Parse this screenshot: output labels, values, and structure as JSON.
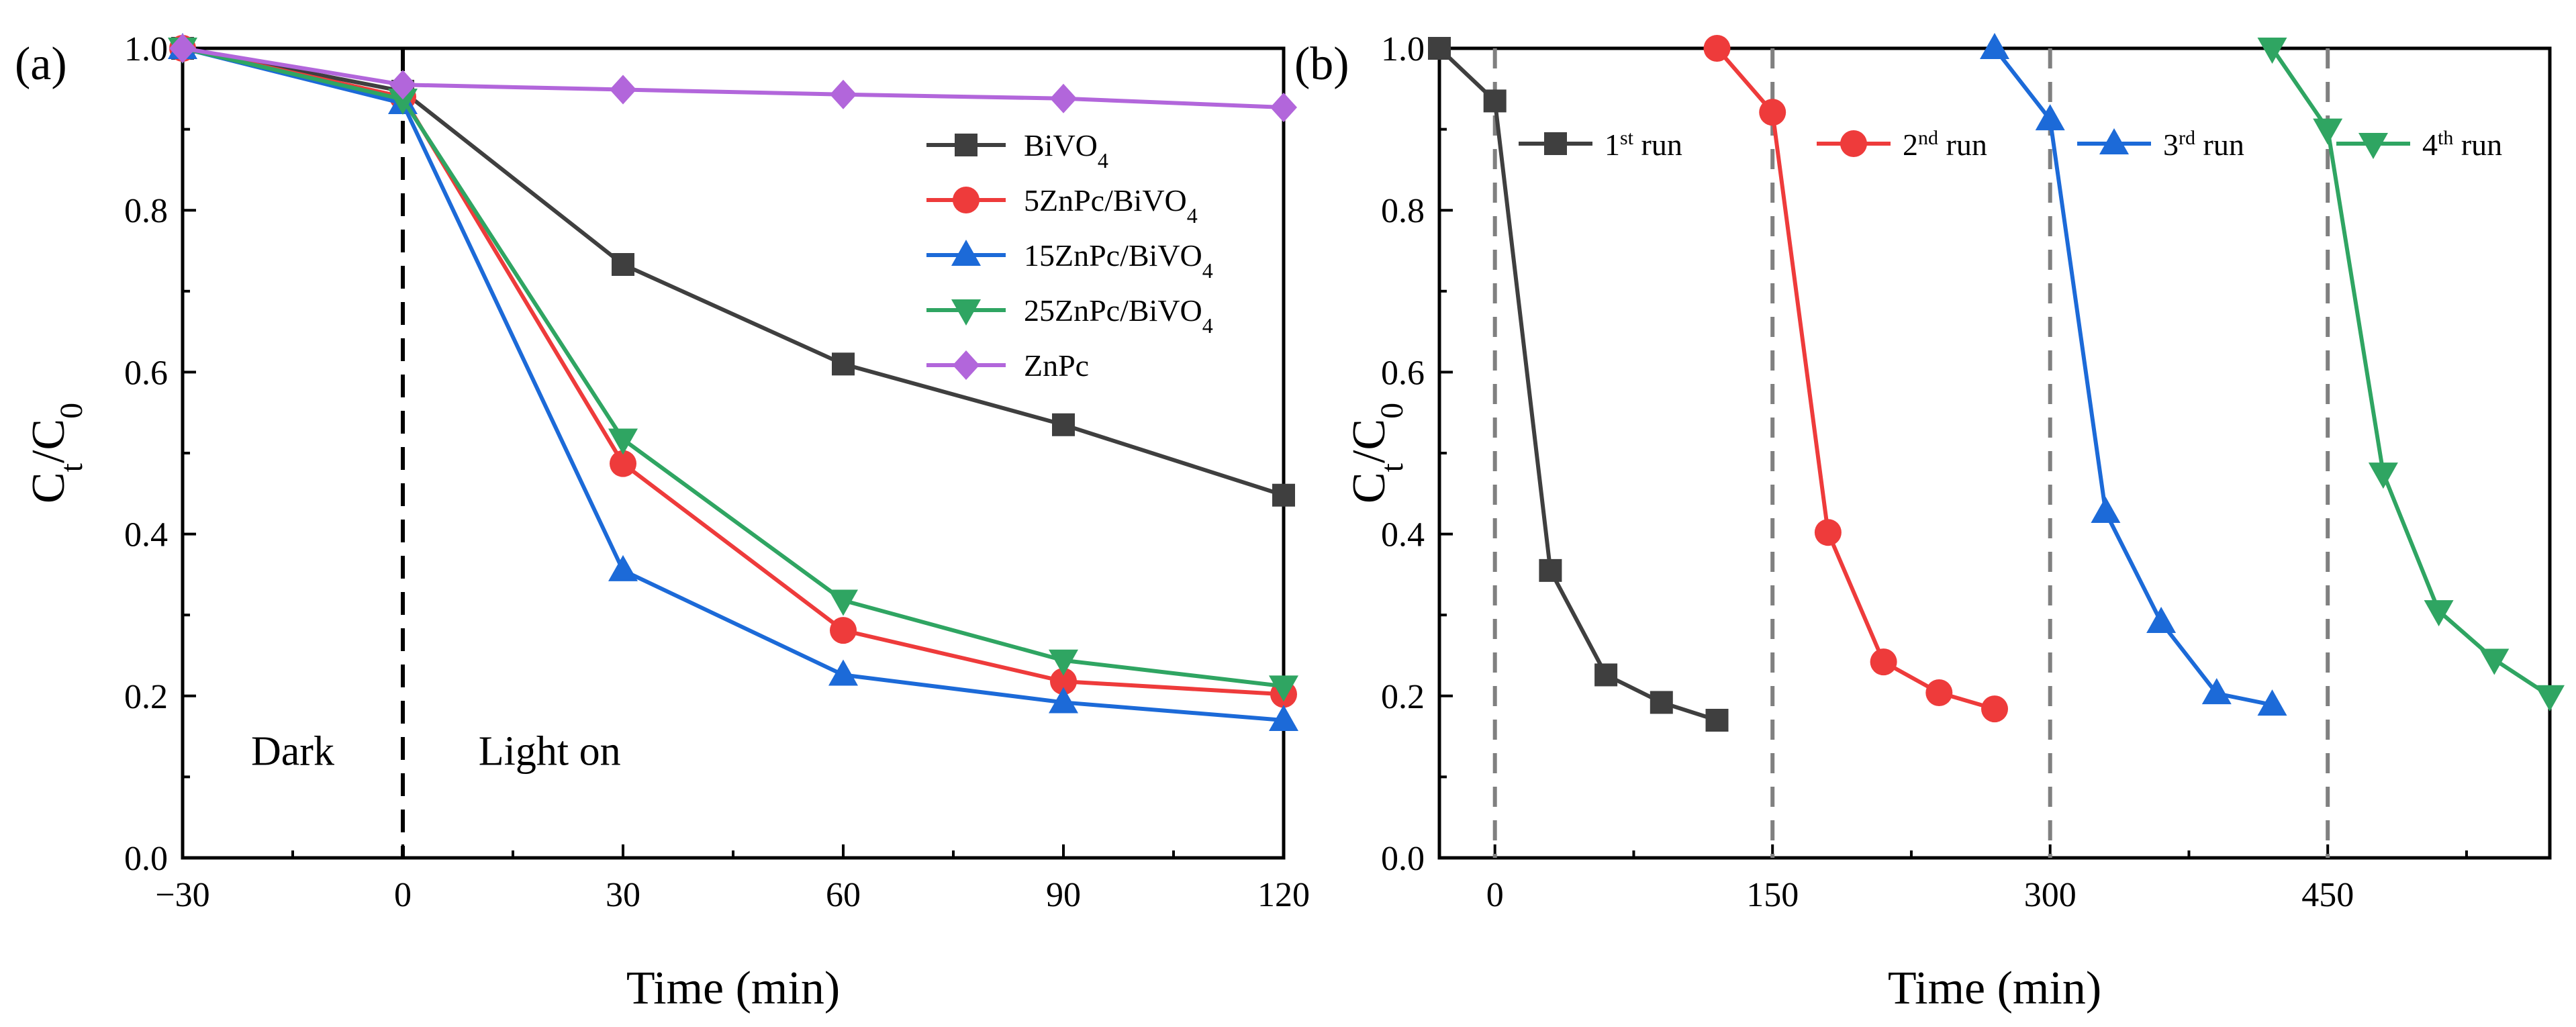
{
  "chart_data": [
    {
      "panel": "(a)",
      "type": "line",
      "xlabel": "Time (min)",
      "ylabel": "Ct/C0",
      "xlim": [
        -30,
        120
      ],
      "ylim": [
        0,
        1.0
      ],
      "xticks": [
        -30,
        0,
        30,
        60,
        90,
        120
      ],
      "xtick_labels": [
        "−30",
        "0",
        "30",
        "60",
        "90",
        "120"
      ],
      "yticks": [
        0.0,
        0.2,
        0.4,
        0.6,
        0.8,
        1.0
      ],
      "ytick_labels": [
        "0.0",
        "0.2",
        "0.4",
        "0.6",
        "0.8",
        "1.0"
      ],
      "x": [
        -30,
        0,
        30,
        60,
        90,
        120
      ],
      "legend_position": "top-right",
      "annotations": [
        {
          "text": "Dark",
          "x": -15,
          "y": 0.115
        },
        {
          "text": "Light on",
          "x": 20,
          "y": 0.115
        }
      ],
      "vline": {
        "x": 0,
        "style": "dashed"
      },
      "series": [
        {
          "name": "BiVO4",
          "base": "BiVO",
          "sub": "4",
          "color": "#3f3f3f",
          "marker": "square",
          "values": [
            1.0,
            0.947,
            0.733,
            0.61,
            0.535,
            0.448
          ]
        },
        {
          "name": "5ZnPc/BiVO4",
          "base": "5ZnPc/BiVO",
          "sub": "4",
          "color": "#ee3b3b",
          "marker": "circle",
          "values": [
            1.0,
            0.94,
            0.487,
            0.281,
            0.218,
            0.202
          ]
        },
        {
          "name": "15ZnPc/BiVO4",
          "base": "15ZnPc/BiVO",
          "sub": "4",
          "color": "#1c6ad8",
          "marker": "triangle-up",
          "values": [
            1.0,
            0.932,
            0.355,
            0.226,
            0.192,
            0.17
          ]
        },
        {
          "name": "25ZnPc/BiVO4",
          "base": "25ZnPc/BiVO",
          "sub": "4",
          "color": "#2fa562",
          "marker": "triangle-down",
          "values": [
            1.0,
            0.937,
            0.517,
            0.318,
            0.244,
            0.212
          ]
        },
        {
          "name": "ZnPc",
          "base": "ZnPc",
          "sub": "",
          "color": "#b266db",
          "marker": "diamond",
          "values": [
            1.0,
            0.955,
            0.949,
            0.943,
            0.938,
            0.927
          ]
        }
      ]
    },
    {
      "panel": "(b)",
      "type": "line",
      "xlabel": "Time (min)",
      "ylabel": "Ct/C0",
      "xlim": [
        -30,
        570
      ],
      "ylim": [
        0,
        1.0
      ],
      "xticks": [
        0,
        150,
        300,
        450
      ],
      "xtick_labels": [
        "0",
        "150",
        "300",
        "450"
      ],
      "yticks": [
        0.0,
        0.2,
        0.4,
        0.6,
        0.8,
        1.0
      ],
      "ytick_labels": [
        "0.0",
        "0.2",
        "0.4",
        "0.6",
        "0.8",
        "1.0"
      ],
      "vlines": [
        0,
        150,
        300,
        450
      ],
      "legend_position": "top",
      "series": [
        {
          "name": "1st run",
          "num": "1",
          "sup": "st",
          "word": " run",
          "color": "#3f3f3f",
          "marker": "square",
          "x": [
            -30,
            0,
            30,
            60,
            90,
            120
          ],
          "values": [
            1.0,
            0.935,
            0.355,
            0.226,
            0.192,
            0.17
          ]
        },
        {
          "name": "2nd run",
          "num": "2",
          "sup": "nd",
          "word": " run",
          "color": "#ee3b3b",
          "marker": "circle",
          "x": [
            120,
            150,
            180,
            210,
            240,
            270
          ],
          "values": [
            1.0,
            0.921,
            0.402,
            0.242,
            0.204,
            0.184
          ]
        },
        {
          "name": "3rd run",
          "num": "3",
          "sup": "rd",
          "word": " run",
          "color": "#1c6ad8",
          "marker": "triangle-up",
          "x": [
            270,
            300,
            330,
            360,
            390,
            420
          ],
          "values": [
            1.0,
            0.912,
            0.427,
            0.291,
            0.203,
            0.189
          ]
        },
        {
          "name": "4th run",
          "num": "4",
          "sup": "th",
          "word": " run",
          "color": "#2fa562",
          "marker": "triangle-down",
          "x": [
            420,
            450,
            480,
            510,
            540,
            570
          ],
          "values": [
            1.0,
            0.9,
            0.475,
            0.305,
            0.245,
            0.2
          ]
        }
      ]
    }
  ]
}
